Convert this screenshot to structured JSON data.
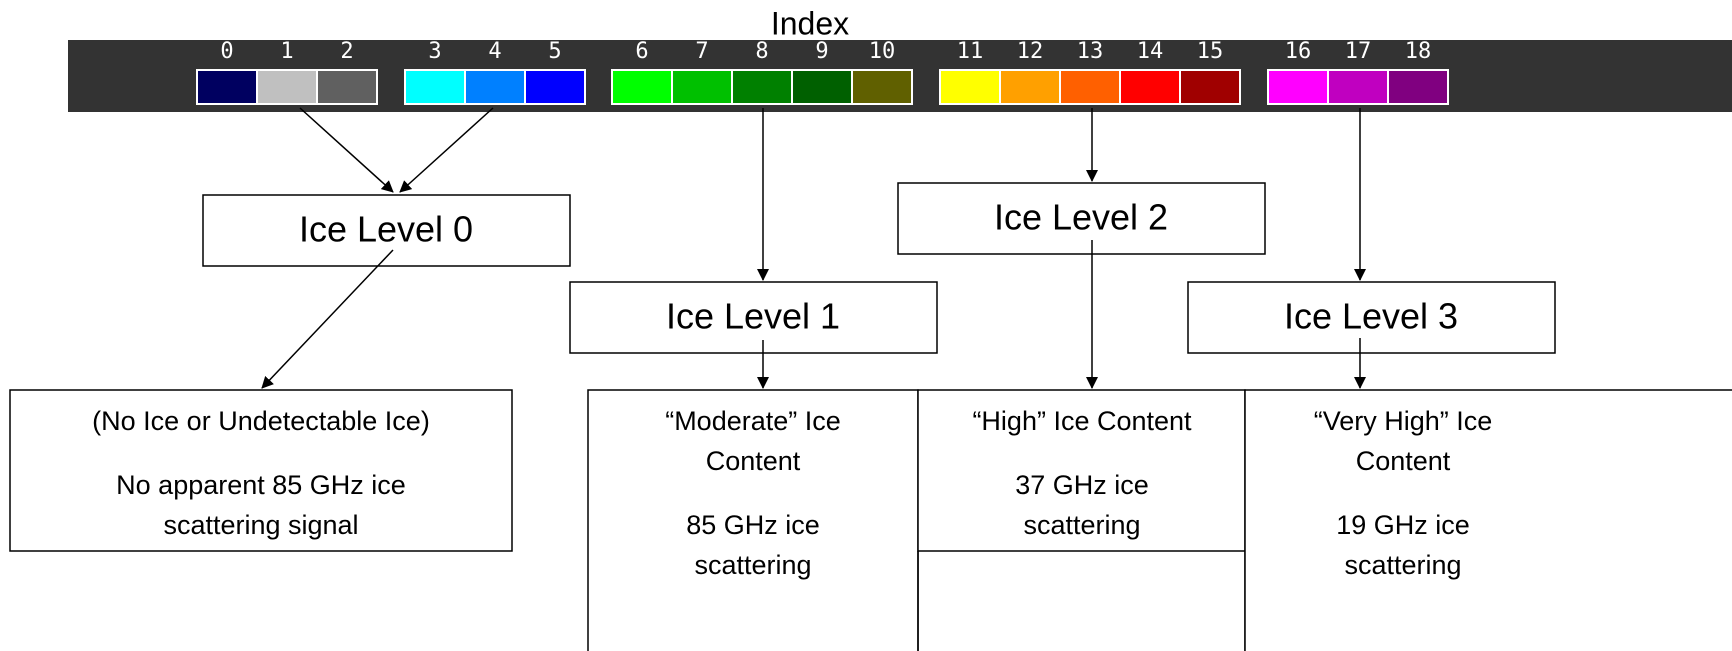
{
  "title": "Index",
  "index": {
    "labels": [
      "0",
      "1",
      "2",
      "3",
      "4",
      "5",
      "6",
      "7",
      "8",
      "9",
      "10",
      "11",
      "12",
      "13",
      "14",
      "15",
      "16",
      "17",
      "18"
    ],
    "colors": [
      "#000060",
      "#c0c0c0",
      "#606060",
      "#00ffff",
      "#0080ff",
      "#0000ff",
      "#00ff00",
      "#00c000",
      "#008000",
      "#006000",
      "#606000",
      "#ffff00",
      "#ffa000",
      "#ff6000",
      "#ff0000",
      "#a00000",
      "#ff00ff",
      "#c000c0",
      "#800080"
    ]
  },
  "levels": [
    "Ice Level 0",
    "Ice Level 1",
    "Ice Level 2",
    "Ice Level 3"
  ],
  "descriptions": [
    {
      "lines": [
        "(No Ice or Undetectable Ice)",
        "No apparent 85 GHz ice",
        "scattering signal"
      ]
    },
    {
      "lines": [
        "“Moderate” Ice",
        "Content",
        "85 GHz ice",
        "scattering"
      ]
    },
    {
      "lines": [
        "“High” Ice Content",
        "37 GHz ice",
        "scattering"
      ]
    },
    {
      "lines": [
        "“Very High” Ice",
        "Content",
        "19 GHz ice",
        "scattering"
      ]
    }
  ]
}
